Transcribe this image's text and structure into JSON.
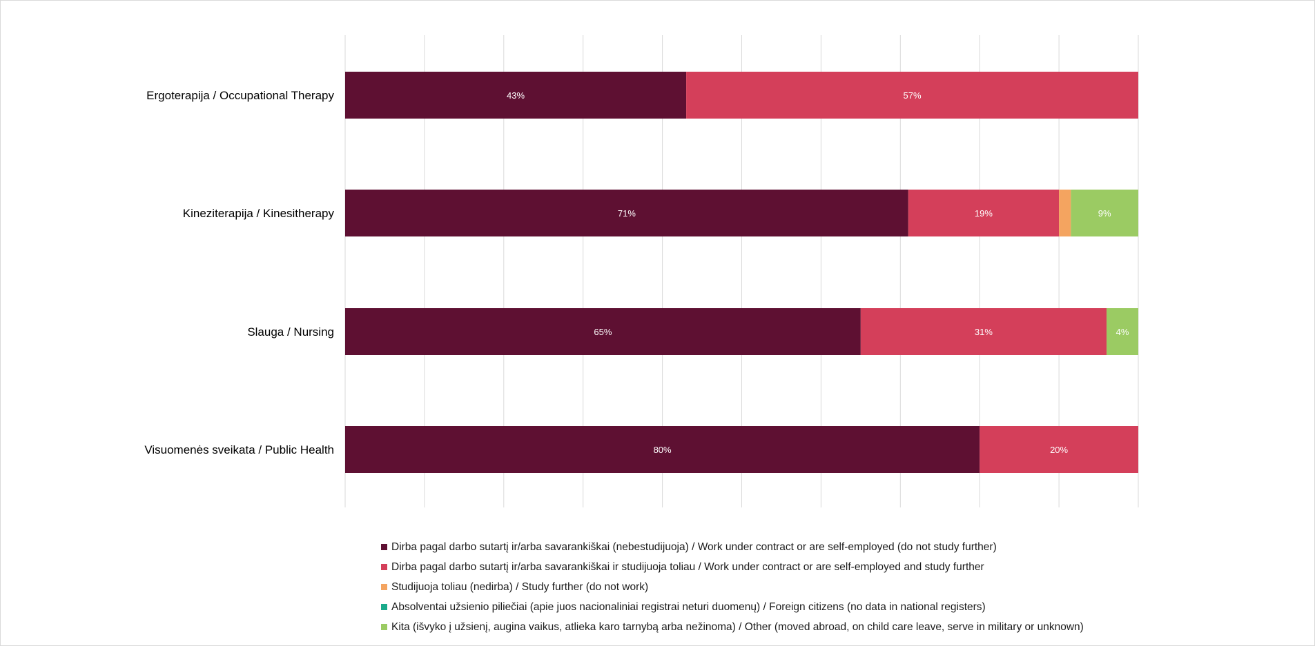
{
  "chart_data": {
    "type": "bar",
    "orientation": "horizontal",
    "stacked": true,
    "percent_stacked": true,
    "categories": [
      "Ergoterapija / Occupational Therapy",
      "Kineziterapija / Kinesitherapy",
      "Slauga / Nursing",
      "Visuomenės sveikata / Public Health"
    ],
    "series": [
      {
        "name": "Dirba pagal darbo sutartį ir/arba savarankiškai (nebestudijuoja) / Work under contract or are self-employed (do not study further)",
        "color": "#5e1032",
        "values": [
          43,
          71,
          65,
          80
        ],
        "labels": [
          "43%",
          "71%",
          "65%",
          "80%"
        ]
      },
      {
        "name": "Dirba pagal darbo sutartį ir/arba savarankiškai  ir studijuoja toliau / Work under contract or are self-employed and study further",
        "color": "#d43f5a",
        "values": [
          57,
          19,
          31,
          20
        ],
        "labels": [
          "57%",
          "19%",
          "31%",
          "20%"
        ]
      },
      {
        "name": "Studijuoja toliau (nedirba) / Study further (do not work)",
        "color": "#f4a460",
        "values": [
          0,
          1.5,
          0,
          0
        ],
        "labels": [
          "",
          "",
          "",
          ""
        ]
      },
      {
        "name": "Absolventai užsienio piliečiai (apie juos nacionaliniai registrai neturi duomenų) / Foreign citizens (no data in national registers)",
        "color": "#1aaa8a",
        "values": [
          0,
          0,
          0,
          0
        ],
        "labels": [
          "",
          "",
          "",
          ""
        ]
      },
      {
        "name": "Kita (išvyko į užsienį, augina vaikus, atlieka karo tarnybą arba nežinoma) / Other (moved abroad, on child care leave, serve in military or unknown)",
        "color": "#9bcb63",
        "values": [
          0,
          8.5,
          4,
          0
        ],
        "labels": [
          "",
          "9%",
          "4%",
          ""
        ]
      }
    ],
    "xlim": [
      0,
      100
    ],
    "grid": true,
    "legend_position": "bottom"
  }
}
